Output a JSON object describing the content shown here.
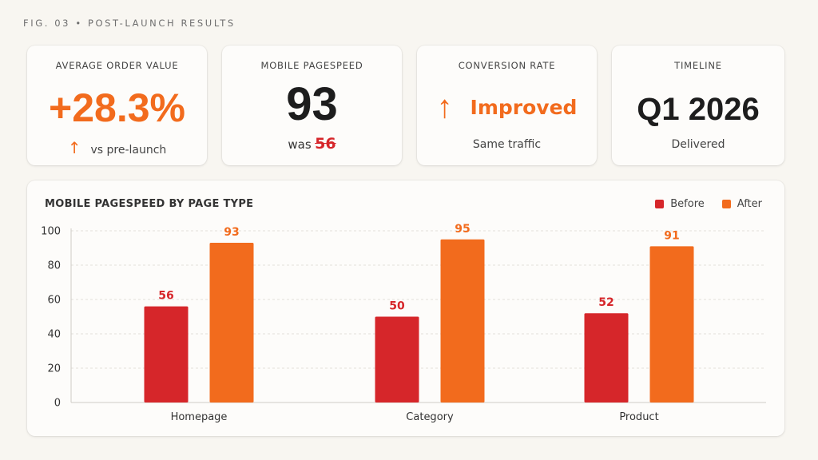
{
  "fig_label": "FIG. 03 • POST-LAUNCH RESULTS",
  "colors": {
    "before": "#d6262a",
    "after": "#f26b1d",
    "accent": "#f26b1d"
  },
  "kpis": {
    "aov": {
      "label": "AVERAGE ORDER VALUE",
      "value": "+28.3%",
      "arrow": "↑",
      "sub": "vs pre-launch"
    },
    "pagespeed": {
      "label": "MOBILE PAGESPEED",
      "value": "93",
      "was_word": "was",
      "was_value": "56"
    },
    "conversion": {
      "label": "CONVERSION RATE",
      "arrow": "↑",
      "value": "Improved",
      "sub": "Same traffic"
    },
    "timeline": {
      "label": "TIMELINE",
      "value": "Q1 2026",
      "sub": "Delivered"
    }
  },
  "chart_data": {
    "type": "bar",
    "title": "MOBILE PAGESPEED BY PAGE TYPE",
    "categories": [
      "Homepage",
      "Category",
      "Product"
    ],
    "series": [
      {
        "name": "Before",
        "values": [
          56,
          50,
          52
        ]
      },
      {
        "name": "After",
        "values": [
          93,
          95,
          91
        ]
      }
    ],
    "ylim": [
      0,
      100
    ],
    "yticks": [
      0,
      20,
      40,
      60,
      80,
      100
    ],
    "grid": true,
    "legend_position": "top-right"
  }
}
